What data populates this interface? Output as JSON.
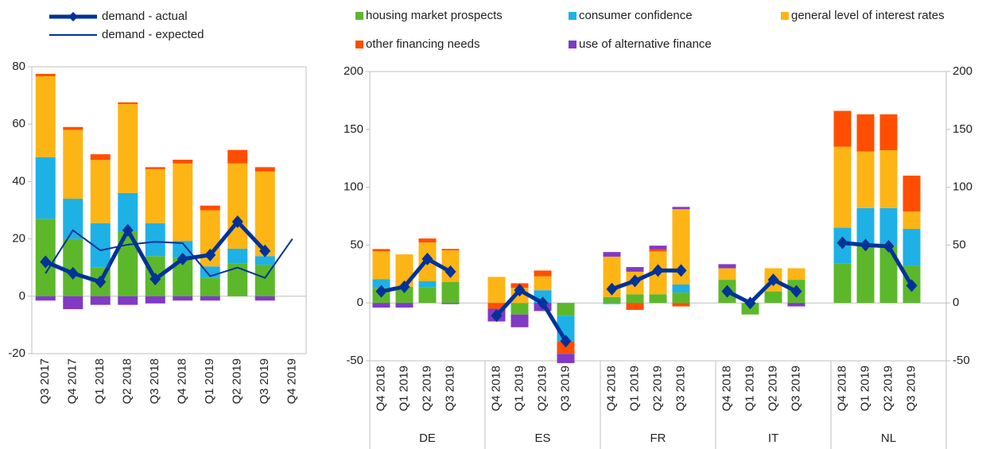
{
  "chart_data": [
    {
      "type": "bar",
      "categories": [
        "Q3 2017",
        "Q4 2017",
        "Q1 2018",
        "Q2 2018",
        "Q3 2018",
        "Q4 2018",
        "Q1 2019",
        "Q2 2019",
        "Q3 2019",
        "Q4 2019"
      ],
      "ylim": [
        -20,
        80
      ],
      "yticks": [
        -20,
        0,
        20,
        40,
        60,
        80
      ],
      "series": [
        {
          "values": [
            27,
            20,
            10,
            22.4,
            14,
            13.3,
            6.4,
            11.4,
            11,
            null
          ]
        },
        {
          "values": [
            21.5,
            14,
            15.5,
            13.6,
            11.5,
            6,
            4,
            5.2,
            3,
            null
          ]
        },
        {
          "values": [
            28.2,
            24,
            22,
            31,
            18.8,
            27,
            19.6,
            29.7,
            29.5,
            null
          ]
        },
        {
          "values": [
            0.8,
            1,
            2,
            0.6,
            0.7,
            1.3,
            1.6,
            4.7,
            1.5,
            null
          ]
        },
        {
          "values": [
            -1.5,
            -4.5,
            -3,
            -3,
            -2.5,
            -1.5,
            -1.5,
            0,
            -1.5,
            null
          ]
        }
      ],
      "line_series": [
        {
          "name": "demand - actual",
          "color": "#003299",
          "values": [
            12,
            8,
            5,
            23,
            6,
            13,
            14.4,
            26,
            15.8,
            null
          ]
        },
        {
          "name": "demand - expected",
          "color": "#003299",
          "values": [
            8,
            23,
            16,
            18,
            19,
            18.5,
            7,
            10,
            6.4,
            20
          ]
        }
      ]
    },
    {
      "type": "bar",
      "categories": [
        "Q4 2018",
        "Q1 2019",
        "Q2 2019",
        "Q3 2019",
        "Q4 2018",
        "Q1 2019",
        "Q2 2019",
        "Q3 2019",
        "Q4 2018",
        "Q1 2019",
        "Q2 2019",
        "Q3 2019",
        "Q4 2018",
        "Q1 2019",
        "Q2 2019",
        "Q3 2019",
        "Q4 2018",
        "Q1 2019",
        "Q2 2019",
        "Q3 2019"
      ],
      "groups": [
        "DE",
        "ES",
        "FR",
        "IT",
        "NL"
      ],
      "ylim": [
        -50,
        200
      ],
      "yticks": [
        -50,
        0,
        50,
        100,
        150,
        200
      ],
      "y2lim": [
        -50,
        200
      ],
      "y2ticks": [
        -50,
        0,
        50,
        100,
        150,
        200
      ],
      "series": [
        {
          "name": "housing market prospects",
          "color": "#5cb82a",
          "values": [
            13,
            14,
            13.7,
            18,
            0,
            -10,
            0,
            -11,
            5,
            7.5,
            7.5,
            9,
            20,
            -10,
            10,
            20,
            34,
            49,
            49,
            32
          ]
        },
        {
          "name": "consumer confidence",
          "color": "#1eb1e6",
          "values": [
            7.6,
            0,
            5,
            0,
            0,
            0,
            11,
            -22,
            -1,
            0,
            0,
            7,
            0,
            0,
            0,
            0,
            31,
            33,
            33,
            32
          ]
        },
        {
          "name": "general level of interest rates",
          "color": "#fdb515",
          "values": [
            24,
            28,
            33.5,
            27.4,
            22.5,
            13,
            12,
            0,
            35,
            19.5,
            37,
            65,
            10,
            0,
            20,
            10,
            70,
            49,
            50,
            15
          ]
        },
        {
          "name": "other financing needs",
          "color": "#ff4e00",
          "values": [
            2,
            0,
            3.5,
            1.3,
            -5,
            4,
            5,
            -11,
            0,
            -6,
            2,
            -3,
            0,
            0,
            0,
            0,
            31,
            32,
            31,
            31
          ]
        },
        {
          "name": "use of alternative finance",
          "color": "#8139c6",
          "values": [
            -4,
            -4,
            0,
            -1,
            -11,
            -11,
            -7,
            -8,
            4,
            4,
            3,
            2,
            3.5,
            0,
            0,
            -3,
            0,
            0,
            0,
            0
          ]
        }
      ],
      "line_series": [
        {
          "values": [
            10,
            14,
            38,
            27,
            -11,
            11,
            0,
            -33,
            12,
            19,
            28,
            28,
            10,
            0,
            20,
            10,
            52,
            50,
            49,
            15
          ]
        }
      ]
    }
  ]
}
